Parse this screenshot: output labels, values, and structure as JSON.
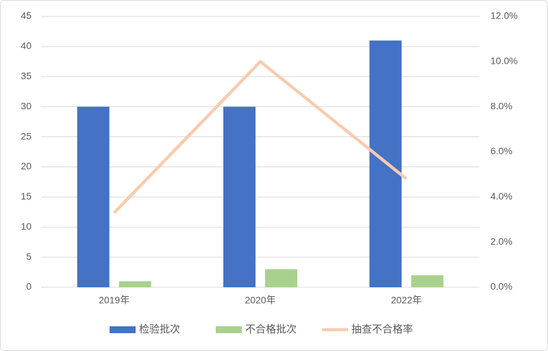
{
  "chart_data": {
    "type": "combo",
    "categories": [
      "2019年",
      "2020年",
      "2022年"
    ],
    "series": [
      {
        "name": "检验批次",
        "color": "#4472c4",
        "type": "bar",
        "values": [
          30,
          30,
          41
        ]
      },
      {
        "name": "不合格批次",
        "color": "#a9d18e",
        "type": "bar",
        "values": [
          1,
          3,
          2
        ]
      },
      {
        "name": "抽查不合格率",
        "color": "#f8cbad",
        "type": "line",
        "axis": "y2",
        "values": [
          3.3,
          10.0,
          4.8
        ]
      }
    ],
    "ylim": [
      0,
      45
    ],
    "yticks": [
      0,
      5,
      10,
      15,
      20,
      25,
      30,
      35,
      40,
      45
    ],
    "y2lim": [
      0,
      12
    ],
    "y2ticks": [
      {
        "value": 0,
        "label": "0.0%"
      },
      {
        "value": 2,
        "label": "2.0%"
      },
      {
        "value": 4,
        "label": "4.0%"
      },
      {
        "value": 6,
        "label": "6.0%"
      },
      {
        "value": 8,
        "label": "8.0%"
      },
      {
        "value": 10,
        "label": "10.0%"
      },
      {
        "value": 12,
        "label": "12.0%"
      }
    ],
    "grid": true,
    "legend": "bottom"
  }
}
